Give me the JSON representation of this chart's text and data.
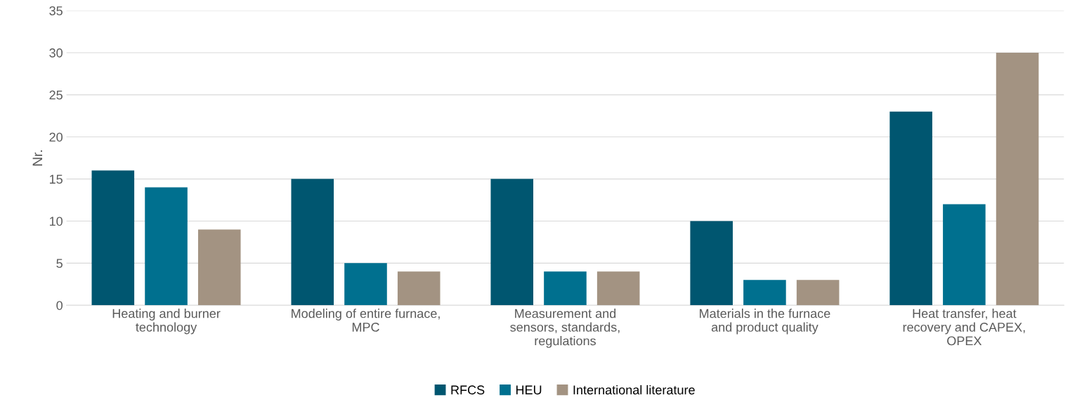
{
  "chart_data": {
    "type": "bar",
    "ylabel": "Nr.",
    "categories": [
      "Heating and burner\ntechnology",
      "Modeling of entire furnace,\nMPC",
      "Measurement and\nsensors, standards,\nregulations",
      "Materials in the furnace\nand product quality",
      "Heat transfer, heat\nrecovery and CAPEX,\nOPEX"
    ],
    "series": [
      {
        "name": "RFCS",
        "color": "#005670",
        "values": [
          16,
          15,
          15,
          10,
          23
        ]
      },
      {
        "name": "HEU",
        "color": "#00708f",
        "values": [
          14,
          5,
          4,
          3,
          12
        ]
      },
      {
        "name": "International literature",
        "color": "#a39382",
        "values": [
          9,
          4,
          4,
          3,
          30
        ]
      }
    ],
    "ylim": [
      0,
      35
    ],
    "yticks": [
      0,
      5,
      10,
      15,
      20,
      25,
      30,
      35
    ],
    "grid": "y",
    "legend": "bottom"
  }
}
